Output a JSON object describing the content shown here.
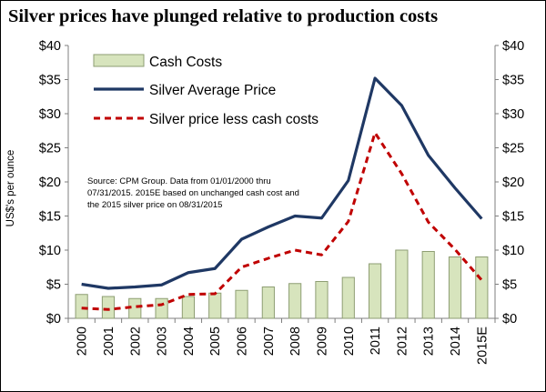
{
  "title": "Silver prices have plunged relative to production costs",
  "source_note": "Source:  CPM Group. Data from 01/01/2000 thru 07/31/2015.  2015E based on unchanged cash cost and the 2015 silver price on 08/31/2015",
  "colors": {
    "bar_fill": "#D7E4BD",
    "bar_stroke": "#8E9E73",
    "price_line": "#1F3864",
    "diff_line": "#C00000",
    "axis": "#7F7F7F"
  },
  "chart_data": {
    "type": "bar+line",
    "title": "Silver prices have plunged relative to production costs",
    "ylabel": "US$'s per ounce",
    "xlabel": "",
    "ylim": [
      0,
      40
    ],
    "yticks": [
      "$0",
      "$5",
      "$10",
      "$15",
      "$20",
      "$25",
      "$30",
      "$35",
      "$40"
    ],
    "secondary_yticks": [
      "$0",
      "$5",
      "$10",
      "$15",
      "$20",
      "$25",
      "$30",
      "$35",
      "$40"
    ],
    "legend_position": "top-left",
    "categories": [
      "2000",
      "2001",
      "2002",
      "2003",
      "2004",
      "2005",
      "2006",
      "2007",
      "2008",
      "2009",
      "2010",
      "2011",
      "2012",
      "2013",
      "2014",
      "2015E"
    ],
    "series": [
      {
        "name": "Cash Costs",
        "type": "bar",
        "values": [
          3.5,
          3.2,
          2.9,
          2.9,
          3.2,
          3.7,
          4.1,
          4.6,
          5.1,
          5.4,
          6.0,
          8.0,
          10.0,
          9.8,
          9.0,
          9.0
        ]
      },
      {
        "name": "Silver Average Price",
        "type": "line",
        "values": [
          5.0,
          4.4,
          4.6,
          4.9,
          6.7,
          7.3,
          11.6,
          13.4,
          15.0,
          14.7,
          20.2,
          35.2,
          31.2,
          23.9,
          19.1,
          14.6
        ]
      },
      {
        "name": "Silver price less cash costs",
        "type": "dashed-line",
        "values": [
          1.5,
          1.3,
          1.7,
          2.0,
          3.5,
          3.6,
          7.5,
          8.8,
          10.0,
          9.3,
          14.2,
          27.2,
          21.2,
          14.1,
          10.1,
          5.6
        ]
      }
    ]
  }
}
